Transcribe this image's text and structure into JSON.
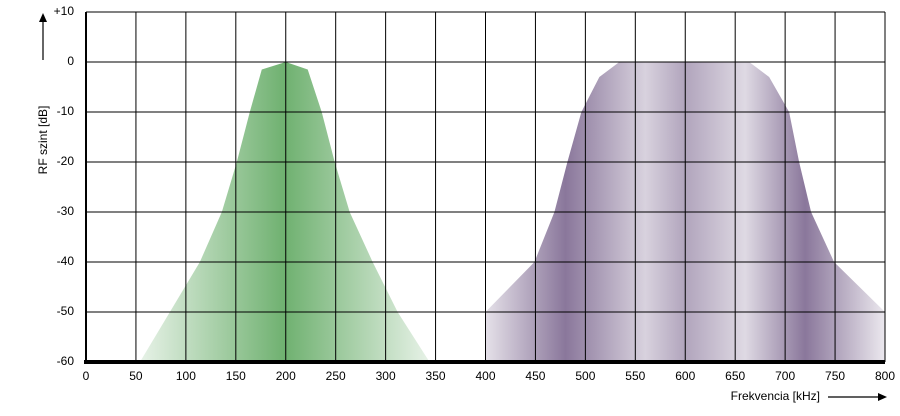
{
  "chart_data": {
    "type": "area",
    "x_label": "Frekvencia [kHz]",
    "y_label": "RF szint [dB]",
    "xlim": [
      0,
      800
    ],
    "ylim": [
      -60,
      10
    ],
    "xticks": [
      0,
      50,
      100,
      150,
      200,
      250,
      300,
      350,
      400,
      450,
      500,
      550,
      600,
      650,
      700,
      750,
      800
    ],
    "yticks": [
      -60,
      -50,
      -40,
      -30,
      -20,
      -10,
      0,
      {
        "value": 10,
        "label": "+10"
      }
    ],
    "grid": true,
    "series": [
      {
        "color": "#5fa860",
        "x": [
          54,
          84,
          114,
          136,
          151,
          164,
          176,
          200,
          222,
          236,
          249,
          264,
          287,
          312,
          344
        ],
        "values": [
          -60,
          -50,
          -40,
          -30,
          -20,
          -10,
          -1.5,
          0,
          -1.5,
          -10,
          -20,
          -30,
          -40,
          -50,
          -60
        ]
      },
      {
        "color": "#7d6890",
        "x": [
          400,
          449,
          469,
          482,
          496,
          514,
          534,
          664,
          684,
          704,
          714,
          726,
          749,
          800
        ],
        "values": [
          -50,
          -40,
          -30,
          -20,
          -10,
          -3,
          0,
          0,
          -3,
          -10,
          -20,
          -30,
          -40,
          -50
        ]
      }
    ]
  }
}
